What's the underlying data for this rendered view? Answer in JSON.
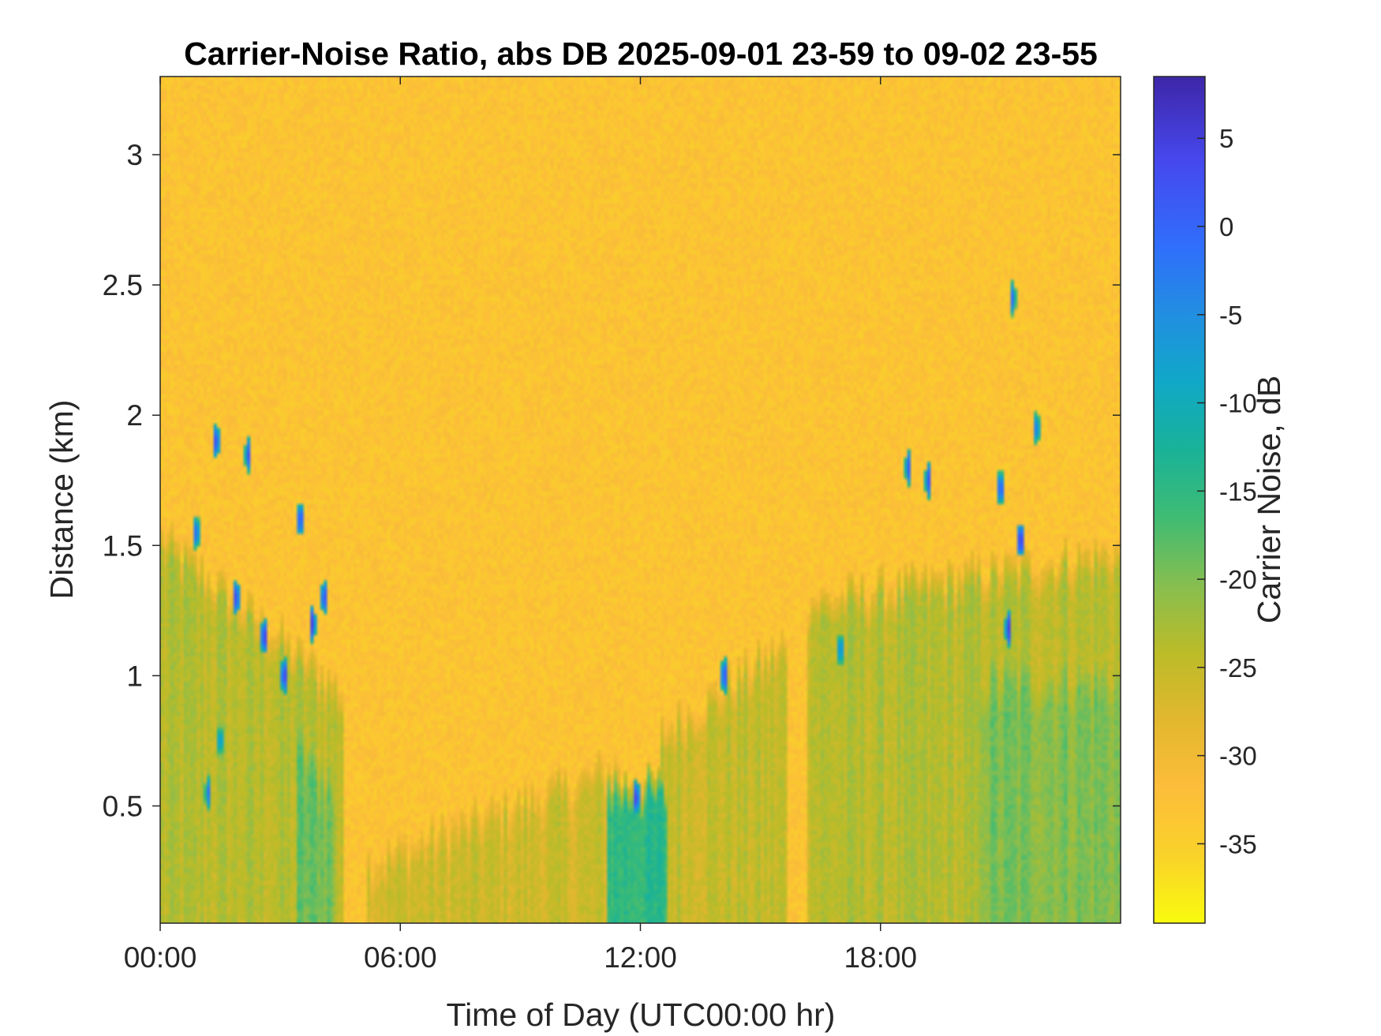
{
  "chart_data": {
    "type": "heatmap",
    "title": "Carrier-Noise Ratio, abs DB 2025-09-01 23-59 to 09-02 23-55",
    "xlabel": "Time of Day (UTC00:00 hr)",
    "ylabel": "Distance (km)",
    "colorbar_label": "Carrier Noise, dB",
    "xlim_hours": [
      0,
      24
    ],
    "ylim_km": [
      0.05,
      3.3
    ],
    "clim_db": [
      -39.5,
      8.5
    ],
    "x_ticks": [
      {
        "hour": 0,
        "label": "00:00"
      },
      {
        "hour": 6,
        "label": "06:00"
      },
      {
        "hour": 12,
        "label": "12:00"
      },
      {
        "hour": 18,
        "label": "18:00"
      }
    ],
    "y_ticks": [
      {
        "value": 0.5,
        "label": "0.5"
      },
      {
        "value": 1,
        "label": "1"
      },
      {
        "value": 1.5,
        "label": "1.5"
      },
      {
        "value": 2,
        "label": "2"
      },
      {
        "value": 2.5,
        "label": "2.5"
      },
      {
        "value": 3,
        "label": "3"
      }
    ],
    "colorbar_ticks": [
      {
        "value": 5,
        "label": "5"
      },
      {
        "value": 0,
        "label": "0"
      },
      {
        "value": -5,
        "label": "-5"
      },
      {
        "value": -10,
        "label": "-10"
      },
      {
        "value": -15,
        "label": "-15"
      },
      {
        "value": -20,
        "label": "-20"
      },
      {
        "value": -25,
        "label": "-25"
      },
      {
        "value": -30,
        "label": "-30"
      },
      {
        "value": -35,
        "label": "-35"
      }
    ],
    "colormap": "parula",
    "background_level_db": -33,
    "signal_regions": [
      {
        "name": "early-morning-boundary-layer",
        "hours": [
          0,
          4.6
        ],
        "top_km": [
          1.55,
          0.95
        ],
        "level_db": -24
      },
      {
        "name": "pre-dawn-column",
        "hours": [
          3.4,
          4.3
        ],
        "top_km": [
          0.75,
          0.6
        ],
        "level_db": -19
      },
      {
        "name": "morning-growth",
        "hours": [
          5.2,
          11.5
        ],
        "top_km": [
          0.3,
          0.68
        ],
        "level_db": -26
      },
      {
        "name": "midday-plume",
        "hours": [
          11.2,
          12.7
        ],
        "top_km": [
          0.6,
          0.6
        ],
        "level_db": -15
      },
      {
        "name": "afternoon-layer",
        "hours": [
          12.5,
          15.7
        ],
        "top_km": [
          0.8,
          1.15
        ],
        "level_db": -25
      },
      {
        "name": "evening-deep-layer",
        "hours": [
          16.2,
          24
        ],
        "top_km": [
          1.3,
          1.5
        ],
        "level_db": -24
      },
      {
        "name": "night-plume",
        "hours": [
          20.5,
          24
        ],
        "top_km": [
          1.0,
          1.0
        ],
        "level_db": -20
      }
    ],
    "strong_returns": [
      {
        "hour": 0.9,
        "km": 1.55,
        "db": 0
      },
      {
        "hour": 1.4,
        "km": 1.9,
        "db": 3
      },
      {
        "hour": 1.9,
        "km": 1.3,
        "db": 4
      },
      {
        "hour": 2.2,
        "km": 1.85,
        "db": 2
      },
      {
        "hour": 2.6,
        "km": 1.15,
        "db": 5
      },
      {
        "hour": 3.1,
        "km": 1.0,
        "db": 4
      },
      {
        "hour": 3.5,
        "km": 1.6,
        "db": 3
      },
      {
        "hour": 3.8,
        "km": 1.2,
        "db": 5
      },
      {
        "hour": 4.1,
        "km": 1.3,
        "db": 3
      },
      {
        "hour": 1.2,
        "km": 0.55,
        "db": -2
      },
      {
        "hour": 1.5,
        "km": 0.75,
        "db": -5
      },
      {
        "hour": 11.9,
        "km": 0.53,
        "db": 4
      },
      {
        "hour": 14.1,
        "km": 1.0,
        "db": 3
      },
      {
        "hour": 17.0,
        "km": 1.1,
        "db": -3
      },
      {
        "hour": 18.7,
        "km": 1.8,
        "db": 2
      },
      {
        "hour": 19.2,
        "km": 1.75,
        "db": 3
      },
      {
        "hour": 21.0,
        "km": 1.72,
        "db": 2
      },
      {
        "hour": 21.3,
        "km": 2.45,
        "db": -1
      },
      {
        "hour": 21.5,
        "km": 1.52,
        "db": 6
      },
      {
        "hour": 21.9,
        "km": 1.95,
        "db": -2
      },
      {
        "hour": 21.2,
        "km": 1.18,
        "db": 5
      }
    ]
  }
}
